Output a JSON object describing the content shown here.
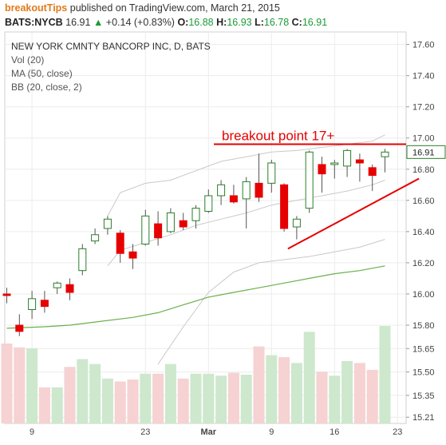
{
  "header": {
    "brand": "breakoutTips",
    "published": "published on TradingView.com, March 21, 2015",
    "symbol": "BATS:NYCB",
    "last": "16.91",
    "change": "+0.14 (+0.83%)",
    "o_label": "O:",
    "o_value": "16.88",
    "h_label": "H:",
    "h_value": "16.93",
    "l_label": "L:",
    "l_value": "16.78",
    "c_label": "C:",
    "c_value": "16.91"
  },
  "indicators": {
    "title": "NEW YORK CMNTY BANCORP INC, D, BATS",
    "vol": "Vol (20)",
    "ma": "MA (50, close)",
    "bb": "BB (20, close, 2)"
  },
  "annotation": {
    "text": "breakout point 17+",
    "level": 16.96,
    "trend_from": {
      "x_index": 22.3,
      "price": 16.29
    },
    "trend_to": {
      "x_index": 32.7,
      "price": 16.74
    }
  },
  "colors": {
    "up": "#2a7d2a",
    "down": "#e60000",
    "ma": "#6ab04c",
    "bb": "#c9c9c9",
    "vol_up": "#cde8cd",
    "vol_down": "#f6d2d2",
    "annotation": "#e60000"
  },
  "chart_data": {
    "type": "candlestick",
    "ylim": [
      15.17,
      17.68
    ],
    "y_ticks": [
      "17.60",
      "17.40",
      "17.20",
      "17.00",
      "16.80",
      "16.60",
      "16.40",
      "16.20",
      "16.00",
      "15.80",
      "15.65",
      "15.50",
      "15.35",
      "15.21"
    ],
    "last_price_label": "16.91",
    "x_ticks": [
      {
        "index": 2,
        "label": "9"
      },
      {
        "index": 11,
        "label": "23"
      },
      {
        "index": 16,
        "label": "Mar"
      },
      {
        "index": 21,
        "label": "9"
      },
      {
        "index": 26,
        "label": "16"
      },
      {
        "index": 31,
        "label": "23"
      }
    ],
    "candles": [
      {
        "o": 16.0,
        "h": 16.04,
        "l": 15.94,
        "c": 15.99
      },
      {
        "o": 15.8,
        "h": 15.87,
        "l": 15.73,
        "c": 15.76
      },
      {
        "o": 15.9,
        "h": 16.02,
        "l": 15.84,
        "c": 15.97
      },
      {
        "o": 15.96,
        "h": 16.02,
        "l": 15.88,
        "c": 15.92
      },
      {
        "o": 16.04,
        "h": 16.08,
        "l": 16.0,
        "c": 16.07
      },
      {
        "o": 16.06,
        "h": 16.1,
        "l": 15.96,
        "c": 16.01
      },
      {
        "o": 16.15,
        "h": 16.32,
        "l": 16.12,
        "c": 16.29
      },
      {
        "o": 16.34,
        "h": 16.42,
        "l": 16.32,
        "c": 16.38
      },
      {
        "o": 16.42,
        "h": 16.5,
        "l": 16.38,
        "c": 16.48
      },
      {
        "o": 16.39,
        "h": 16.41,
        "l": 16.2,
        "c": 16.26
      },
      {
        "o": 16.27,
        "h": 16.32,
        "l": 16.16,
        "c": 16.23
      },
      {
        "o": 16.32,
        "h": 16.54,
        "l": 16.31,
        "c": 16.5
      },
      {
        "o": 16.45,
        "h": 16.53,
        "l": 16.31,
        "c": 16.36
      },
      {
        "o": 16.4,
        "h": 16.55,
        "l": 16.39,
        "c": 16.52
      },
      {
        "o": 16.47,
        "h": 16.52,
        "l": 16.41,
        "c": 16.43
      },
      {
        "o": 16.47,
        "h": 16.57,
        "l": 16.42,
        "c": 16.55
      },
      {
        "o": 16.53,
        "h": 16.67,
        "l": 16.52,
        "c": 16.63
      },
      {
        "o": 16.63,
        "h": 16.73,
        "l": 16.57,
        "c": 16.7
      },
      {
        "o": 16.63,
        "h": 16.7,
        "l": 16.58,
        "c": 16.59
      },
      {
        "o": 16.61,
        "h": 16.75,
        "l": 16.42,
        "c": 16.72
      },
      {
        "o": 16.71,
        "h": 16.9,
        "l": 16.59,
        "c": 16.62
      },
      {
        "o": 16.71,
        "h": 16.86,
        "l": 16.65,
        "c": 16.84
      },
      {
        "o": 16.7,
        "h": 16.71,
        "l": 16.4,
        "c": 16.42
      },
      {
        "o": 16.43,
        "h": 16.5,
        "l": 16.35,
        "c": 16.48
      },
      {
        "o": 16.55,
        "h": 16.92,
        "l": 16.52,
        "c": 16.91
      },
      {
        "o": 16.83,
        "h": 16.88,
        "l": 16.65,
        "c": 16.77
      },
      {
        "o": 16.83,
        "h": 16.86,
        "l": 16.74,
        "c": 16.84
      },
      {
        "o": 16.82,
        "h": 16.93,
        "l": 16.75,
        "c": 16.92
      },
      {
        "o": 16.86,
        "h": 16.9,
        "l": 16.72,
        "c": 16.84
      },
      {
        "o": 16.81,
        "h": 16.83,
        "l": 16.66,
        "c": 16.76
      },
      {
        "o": 16.88,
        "h": 16.93,
        "l": 16.78,
        "c": 16.91
      }
    ],
    "volume": [
      0.82,
      0.78,
      0.77,
      0.37,
      0.37,
      0.58,
      0.66,
      0.61,
      0.46,
      0.43,
      0.45,
      0.51,
      0.51,
      0.61,
      0.46,
      0.51,
      0.51,
      0.49,
      0.52,
      0.5,
      0.79,
      0.7,
      0.68,
      0.62,
      0.94,
      0.53,
      0.49,
      0.64,
      0.62,
      0.55,
      1.0
    ],
    "ma50": [
      [
        0,
        15.78
      ],
      [
        3,
        15.79
      ],
      [
        5,
        15.8
      ],
      [
        7,
        15.82
      ],
      [
        10,
        15.85
      ],
      [
        12,
        15.88
      ],
      [
        14,
        15.93
      ],
      [
        16,
        15.98
      ],
      [
        18,
        16.01
      ],
      [
        20,
        16.04
      ],
      [
        22,
        16.07
      ],
      [
        24,
        16.1
      ],
      [
        26,
        16.13
      ],
      [
        28,
        16.15
      ],
      [
        30,
        16.18
      ]
    ],
    "bb_upper": [
      [
        8,
        16.5
      ],
      [
        9,
        16.65
      ],
      [
        11,
        16.71
      ],
      [
        13,
        16.73
      ],
      [
        15,
        16.79
      ],
      [
        17,
        16.85
      ],
      [
        19,
        16.88
      ],
      [
        21,
        16.91
      ],
      [
        23,
        16.92
      ],
      [
        25,
        16.94
      ],
      [
        27,
        16.96
      ],
      [
        29,
        16.98
      ],
      [
        30,
        17.02
      ]
    ],
    "bb_mid": [
      [
        8,
        16.18
      ],
      [
        9,
        16.28
      ],
      [
        11,
        16.33
      ],
      [
        13,
        16.38
      ],
      [
        15,
        16.44
      ],
      [
        17,
        16.48
      ],
      [
        19,
        16.52
      ],
      [
        21,
        16.57
      ],
      [
        23,
        16.6
      ],
      [
        25,
        16.63
      ],
      [
        27,
        16.66
      ],
      [
        29,
        16.7
      ],
      [
        30,
        16.73
      ]
    ],
    "bb_lower": [
      [
        12,
        15.55
      ],
      [
        14,
        15.79
      ],
      [
        16,
        16.01
      ],
      [
        18,
        16.14
      ],
      [
        20,
        16.2
      ],
      [
        22,
        16.22
      ],
      [
        24,
        16.24
      ],
      [
        26,
        16.27
      ],
      [
        28,
        16.3
      ],
      [
        30,
        16.35
      ]
    ]
  }
}
